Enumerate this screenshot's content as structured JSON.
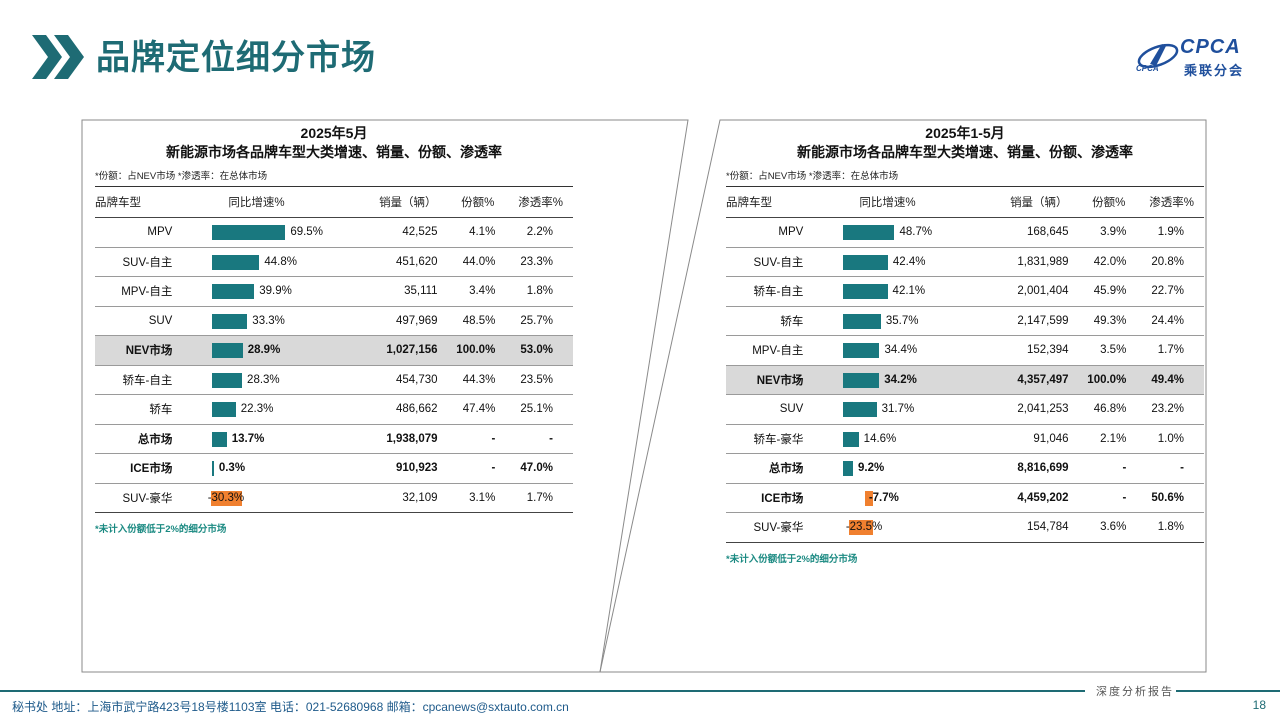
{
  "header": {
    "title": "品牌定位细分市场",
    "logo_text": "CPCA",
    "logo_sub": "乘联分会",
    "logo_mark": "CPCA"
  },
  "left": {
    "title1": "2025年5月",
    "title2": "新能源市场各品牌车型大类增速、销量、份额、渗透率",
    "note": "*份额：占NEV市场  *渗透率：在总体市场",
    "footnote": "*未计入份额低于2%的细分市场",
    "headers": {
      "name": "品牌车型",
      "growth": "同比增速%",
      "volume": "销量（辆）",
      "share": "份额%",
      "pen": "渗透率%"
    }
  },
  "right": {
    "title1": "2025年1-5月",
    "title2": "新能源市场各品牌车型大类增速、销量、份额、渗透率",
    "note": "*份额：占NEV市场  *渗透率：在总体市场",
    "footnote": "*未计入份额低于2%的细分市场",
    "headers": {
      "name": "品牌车型",
      "growth": "同比增速%",
      "volume": "销量（辆）",
      "share": "份额%",
      "pen": "渗透率%"
    }
  },
  "chart_data": [
    {
      "type": "table",
      "title": "2025年5月 新能源市场各品牌车型大类增速、销量、份额、渗透率",
      "columns": [
        "品牌车型",
        "同比增速%",
        "销量（辆）",
        "份额%",
        "渗透率%"
      ],
      "rows": [
        {
          "name": "MPV",
          "growth": 69.5,
          "growth_label": "69.5%",
          "volume": "42,525",
          "share": "4.1%",
          "pen": "2.2%",
          "style": ""
        },
        {
          "name": "SUV-自主",
          "growth": 44.8,
          "growth_label": "44.8%",
          "volume": "451,620",
          "share": "44.0%",
          "pen": "23.3%",
          "style": ""
        },
        {
          "name": "MPV-自主",
          "growth": 39.9,
          "growth_label": "39.9%",
          "volume": "35,111",
          "share": "3.4%",
          "pen": "1.8%",
          "style": ""
        },
        {
          "name": "SUV",
          "growth": 33.3,
          "growth_label": "33.3%",
          "volume": "497,969",
          "share": "48.5%",
          "pen": "25.7%",
          "style": ""
        },
        {
          "name": "NEV市场",
          "growth": 28.9,
          "growth_label": "28.9%",
          "volume": "1,027,156",
          "share": "100.0%",
          "pen": "53.0%",
          "style": "hl"
        },
        {
          "name": "轿车-自主",
          "growth": 28.3,
          "growth_label": "28.3%",
          "volume": "454,730",
          "share": "44.3%",
          "pen": "23.5%",
          "style": ""
        },
        {
          "name": "轿车",
          "growth": 22.3,
          "growth_label": "22.3%",
          "volume": "486,662",
          "share": "47.4%",
          "pen": "25.1%",
          "style": ""
        },
        {
          "name": "总市场",
          "growth": 13.7,
          "growth_label": "13.7%",
          "volume": "1,938,079",
          "share": "-",
          "pen": "-",
          "style": "bold"
        },
        {
          "name": "ICE市场",
          "growth": 0.3,
          "growth_label": "0.3%",
          "volume": "910,923",
          "share": "-",
          "pen": "47.0%",
          "style": "bold"
        },
        {
          "name": "SUV-豪华",
          "growth": -30.3,
          "growth_label": "-30.3%",
          "volume": "32,109",
          "share": "3.1%",
          "pen": "1.7%",
          "style": ""
        }
      ]
    },
    {
      "type": "table",
      "title": "2025年1-5月 新能源市场各品牌车型大类增速、销量、份额、渗透率",
      "columns": [
        "品牌车型",
        "同比增速%",
        "销量（辆）",
        "份额%",
        "渗透率%"
      ],
      "rows": [
        {
          "name": "MPV",
          "growth": 48.7,
          "growth_label": "48.7%",
          "volume": "168,645",
          "share": "3.9%",
          "pen": "1.9%",
          "style": ""
        },
        {
          "name": "SUV-自主",
          "growth": 42.4,
          "growth_label": "42.4%",
          "volume": "1,831,989",
          "share": "42.0%",
          "pen": "20.8%",
          "style": ""
        },
        {
          "name": "轿车-自主",
          "growth": 42.1,
          "growth_label": "42.1%",
          "volume": "2,001,404",
          "share": "45.9%",
          "pen": "22.7%",
          "style": ""
        },
        {
          "name": "轿车",
          "growth": 35.7,
          "growth_label": "35.7%",
          "volume": "2,147,599",
          "share": "49.3%",
          "pen": "24.4%",
          "style": ""
        },
        {
          "name": "MPV-自主",
          "growth": 34.4,
          "growth_label": "34.4%",
          "volume": "152,394",
          "share": "3.5%",
          "pen": "1.7%",
          "style": ""
        },
        {
          "name": "NEV市场",
          "growth": 34.2,
          "growth_label": "34.2%",
          "volume": "4,357,497",
          "share": "100.0%",
          "pen": "49.4%",
          "style": "hl"
        },
        {
          "name": "SUV",
          "growth": 31.7,
          "growth_label": "31.7%",
          "volume": "2,041,253",
          "share": "46.8%",
          "pen": "23.2%",
          "style": ""
        },
        {
          "name": "轿车-豪华",
          "growth": 14.6,
          "growth_label": "14.6%",
          "volume": "91,046",
          "share": "2.1%",
          "pen": "1.0%",
          "style": ""
        },
        {
          "name": "总市场",
          "growth": 9.2,
          "growth_label": "9.2%",
          "volume": "8,816,699",
          "share": "-",
          "pen": "-",
          "style": "bold"
        },
        {
          "name": "ICE市场",
          "growth": -7.7,
          "growth_label": "-7.7%",
          "volume": "4,459,202",
          "share": "-",
          "pen": "50.6%",
          "style": "bold"
        },
        {
          "name": "SUV-豪华",
          "growth": -23.5,
          "growth_label": "-23.5%",
          "volume": "154,784",
          "share": "3.6%",
          "pen": "1.8%",
          "style": ""
        }
      ]
    }
  ],
  "colors": {
    "accent": "#1e6b74",
    "positive_bar": "#19787f",
    "negative_bar": "#f0802f",
    "highlight_row": "#d9d9d9",
    "footnote": "#1b8a82"
  },
  "footer": {
    "tag": "深度分析报告",
    "info": "秘书处   地址：上海市武宁路423号18号楼1103室  电话：021-52680968   邮箱：cpcanews@sxtauto.com.cn",
    "page": "18"
  }
}
